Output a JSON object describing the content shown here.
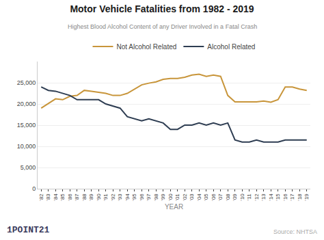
{
  "chart_data": {
    "type": "line",
    "title": "Motor Vehicle Fatalities from 1982 - 2019",
    "subtitle": "Highest Blood Alcohol Content of any Driver Involved in a Fatal Crash",
    "xlabel": "YEAR",
    "x": [
      1982,
      1983,
      1984,
      1985,
      1986,
      1987,
      1988,
      1989,
      1990,
      1991,
      1992,
      1993,
      1994,
      1995,
      1996,
      1997,
      1998,
      1999,
      2000,
      2001,
      2002,
      2003,
      2004,
      2005,
      2006,
      2007,
      2008,
      2009,
      2010,
      2011,
      2012,
      2013,
      2014,
      2015,
      2016,
      2017,
      2018,
      2019
    ],
    "series": [
      {
        "name": "Not Alcohol Related",
        "color": "#c8953a",
        "values": [
          19000,
          20100,
          21200,
          21000,
          21800,
          22000,
          23200,
          23000,
          22800,
          22500,
          22000,
          22000,
          22500,
          23500,
          24500,
          24900,
          25200,
          25800,
          26000,
          26000,
          26300,
          26800,
          27000,
          26500,
          26800,
          26500,
          22000,
          20500,
          20500,
          20500,
          20500,
          20700,
          20400,
          21000,
          24000,
          24000,
          23500,
          23200
        ]
      },
      {
        "name": "Alcohol Related",
        "color": "#2e3d52",
        "values": [
          24000,
          23200,
          23000,
          22500,
          22000,
          21000,
          21000,
          21000,
          21000,
          20000,
          19500,
          19000,
          17000,
          16500,
          16000,
          16500,
          16000,
          15500,
          14000,
          14000,
          15000,
          15000,
          15500,
          15000,
          15500,
          15000,
          15500,
          11500,
          11000,
          11000,
          11500,
          11000,
          11000,
          11000,
          11500,
          11500,
          11500,
          11500
        ]
      }
    ],
    "xlim": [
      1981.5,
      2019.5
    ],
    "xticks": [
      {
        "value": 1982,
        "label": "'82"
      },
      {
        "value": 1983,
        "label": "'83"
      },
      {
        "value": 1984,
        "label": "'84"
      },
      {
        "value": 1985,
        "label": "'85"
      },
      {
        "value": 1986,
        "label": "'86"
      },
      {
        "value": 1987,
        "label": "'87"
      },
      {
        "value": 1988,
        "label": "'88"
      },
      {
        "value": 1989,
        "label": "'89"
      },
      {
        "value": 1990,
        "label": "'90"
      },
      {
        "value": 1991,
        "label": "'91"
      },
      {
        "value": 1992,
        "label": "'92"
      },
      {
        "value": 1993,
        "label": "'93"
      },
      {
        "value": 1994,
        "label": "'94"
      },
      {
        "value": 1995,
        "label": "'95"
      },
      {
        "value": 1996,
        "label": "'96"
      },
      {
        "value": 1997,
        "label": "'97"
      },
      {
        "value": 1998,
        "label": "'98"
      },
      {
        "value": 1999,
        "label": "'99"
      },
      {
        "value": 2000,
        "label": "'00"
      },
      {
        "value": 2001,
        "label": "'01"
      },
      {
        "value": 2002,
        "label": "'02"
      },
      {
        "value": 2003,
        "label": "'03"
      },
      {
        "value": 2004,
        "label": "'04"
      },
      {
        "value": 2005,
        "label": "'05"
      },
      {
        "value": 2006,
        "label": "'06"
      },
      {
        "value": 2007,
        "label": "'07"
      },
      {
        "value": 2008,
        "label": "'08"
      },
      {
        "value": 2009,
        "label": "'09"
      },
      {
        "value": 2010,
        "label": "'10"
      },
      {
        "value": 2011,
        "label": "'11"
      },
      {
        "value": 2012,
        "label": "'12"
      },
      {
        "value": 2013,
        "label": "'13"
      },
      {
        "value": 2014,
        "label": "'14"
      },
      {
        "value": 2015,
        "label": "'15"
      },
      {
        "value": 2016,
        "label": "'16"
      },
      {
        "value": 2017,
        "label": "'17"
      },
      {
        "value": 2018,
        "label": "'18"
      },
      {
        "value": 2019,
        "label": "'19"
      }
    ],
    "ylim": [
      0,
      30000
    ],
    "yticks": [
      0,
      {
        "value": 5000,
        "label": "5,000"
      },
      {
        "value": 10000,
        "label": "10,000"
      },
      {
        "value": 15000,
        "label": "15,000"
      },
      {
        "value": 20000,
        "label": "20,000"
      },
      {
        "value": 25000,
        "label": "25,000"
      }
    ],
    "grid": true,
    "legend": "top",
    "annotations": [
      "Source: NHTSA",
      "1POINT21"
    ]
  }
}
